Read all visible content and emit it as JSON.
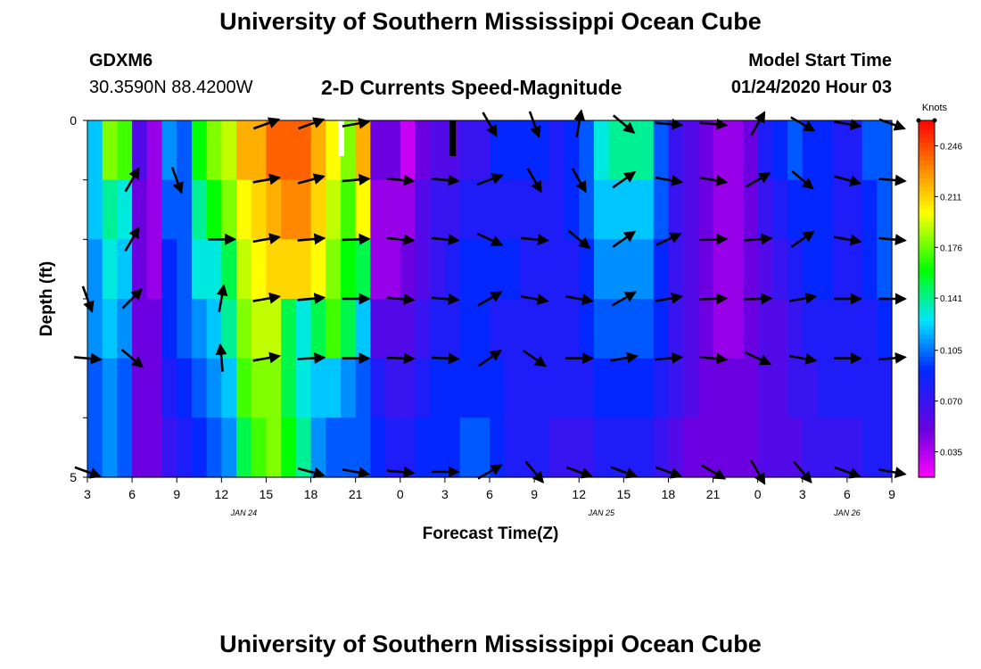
{
  "header": {
    "title": "University of Southern Mississippi Ocean Cube",
    "station": "GDXM6",
    "coords": "30.3590N 88.4200W",
    "subtitle": "2-D Currents Speed-Magnitude",
    "model_label": "Model Start Time",
    "model_time": "01/24/2020 Hour 03"
  },
  "footer": {
    "title": "University of Southern Mississippi Ocean Cube"
  },
  "chart_data": {
    "type": "heatmap",
    "title": "2-D Currents Speed-Magnitude",
    "xlabel": "Forecast Time(Z)",
    "ylabel": "Depth (ft)",
    "x_tick_labels": [
      "3",
      "6",
      "9",
      "12",
      "15",
      "18",
      "21",
      "0",
      "3",
      "6",
      "9",
      "12",
      "15",
      "18",
      "21",
      "0",
      "3",
      "6",
      "9"
    ],
    "date_labels": [
      {
        "label": "JAN 24",
        "tick_index": 3.5
      },
      {
        "label": "JAN 25",
        "tick_index": 11.5
      },
      {
        "label": "JAN 26",
        "tick_index": 17.0
      }
    ],
    "xlim_hours": [
      0,
      54
    ],
    "y_tick_labels": [
      "0",
      "5"
    ],
    "ylim": [
      0,
      5
    ],
    "depth_layers": 6,
    "colorbar": {
      "label": "Knots",
      "min": 0.0175,
      "max": 0.2635,
      "ticks": [
        "0.246",
        "0.211",
        "0.176",
        "0.141",
        "0.105",
        "0.070",
        "0.035"
      ],
      "tick_values": [
        0.246,
        0.211,
        0.176,
        0.141,
        0.105,
        0.07,
        0.035
      ]
    },
    "markers": [
      {
        "hour": 17,
        "color": "#ffffff"
      },
      {
        "hour": 24.5,
        "color": "#000000"
      }
    ],
    "speed_rows": [
      [
        0.12,
        0.18,
        0.17,
        0.06,
        0.04,
        0.11,
        0.1,
        0.16,
        0.18,
        0.19,
        0.22,
        0.22,
        0.24,
        0.24,
        0.24,
        0.22,
        0.2,
        0.18,
        0.22,
        0.05,
        0.05,
        0.03,
        0.05,
        0.06,
        0.06,
        0.07,
        0.07,
        0.09,
        0.09,
        0.09,
        0.09,
        0.08,
        0.09,
        0.1,
        0.13,
        0.14,
        0.14,
        0.14,
        0.1,
        0.07,
        0.06,
        0.05,
        0.04,
        0.04,
        0.05,
        0.08,
        0.09,
        0.1,
        0.09,
        0.09,
        0.08,
        0.08,
        0.1,
        0.1
      ],
      [
        0.12,
        0.14,
        0.13,
        0.05,
        0.04,
        0.1,
        0.1,
        0.14,
        0.16,
        0.18,
        0.2,
        0.21,
        0.22,
        0.23,
        0.23,
        0.21,
        0.19,
        0.17,
        0.2,
        0.04,
        0.04,
        0.04,
        0.06,
        0.07,
        0.07,
        0.08,
        0.08,
        0.08,
        0.08,
        0.08,
        0.08,
        0.08,
        0.09,
        0.1,
        0.12,
        0.12,
        0.12,
        0.12,
        0.1,
        0.07,
        0.06,
        0.05,
        0.04,
        0.04,
        0.05,
        0.07,
        0.08,
        0.09,
        0.09,
        0.09,
        0.08,
        0.08,
        0.09,
        0.1
      ],
      [
        0.11,
        0.13,
        0.12,
        0.05,
        0.04,
        0.09,
        0.1,
        0.13,
        0.13,
        0.15,
        0.19,
        0.2,
        0.21,
        0.21,
        0.21,
        0.2,
        0.18,
        0.16,
        0.15,
        0.04,
        0.04,
        0.05,
        0.06,
        0.07,
        0.08,
        0.09,
        0.09,
        0.09,
        0.09,
        0.08,
        0.08,
        0.08,
        0.08,
        0.09,
        0.11,
        0.11,
        0.11,
        0.11,
        0.09,
        0.07,
        0.06,
        0.05,
        0.04,
        0.04,
        0.05,
        0.06,
        0.07,
        0.08,
        0.09,
        0.09,
        0.08,
        0.08,
        0.09,
        0.1
      ],
      [
        0.11,
        0.12,
        0.11,
        0.05,
        0.05,
        0.09,
        0.1,
        0.11,
        0.12,
        0.14,
        0.18,
        0.19,
        0.19,
        0.15,
        0.13,
        0.15,
        0.17,
        0.15,
        0.12,
        0.06,
        0.06,
        0.06,
        0.07,
        0.08,
        0.08,
        0.09,
        0.09,
        0.08,
        0.08,
        0.08,
        0.08,
        0.08,
        0.08,
        0.09,
        0.1,
        0.1,
        0.1,
        0.1,
        0.09,
        0.07,
        0.06,
        0.05,
        0.04,
        0.04,
        0.05,
        0.06,
        0.06,
        0.07,
        0.08,
        0.08,
        0.08,
        0.08,
        0.08,
        0.09
      ],
      [
        0.1,
        0.11,
        0.1,
        0.05,
        0.05,
        0.08,
        0.09,
        0.1,
        0.11,
        0.12,
        0.17,
        0.18,
        0.18,
        0.15,
        0.13,
        0.12,
        0.12,
        0.11,
        0.1,
        0.08,
        0.07,
        0.07,
        0.08,
        0.09,
        0.09,
        0.09,
        0.09,
        0.09,
        0.08,
        0.08,
        0.08,
        0.08,
        0.08,
        0.08,
        0.09,
        0.09,
        0.09,
        0.09,
        0.08,
        0.07,
        0.06,
        0.05,
        0.05,
        0.05,
        0.05,
        0.06,
        0.06,
        0.07,
        0.07,
        0.08,
        0.08,
        0.08,
        0.08,
        0.08
      ],
      [
        0.1,
        0.11,
        0.1,
        0.05,
        0.05,
        0.07,
        0.08,
        0.09,
        0.1,
        0.11,
        0.15,
        0.17,
        0.18,
        0.16,
        0.14,
        0.11,
        0.1,
        0.1,
        0.1,
        0.09,
        0.08,
        0.08,
        0.09,
        0.09,
        0.09,
        0.1,
        0.1,
        0.09,
        0.08,
        0.08,
        0.08,
        0.07,
        0.07,
        0.07,
        0.08,
        0.08,
        0.08,
        0.08,
        0.07,
        0.06,
        0.05,
        0.05,
        0.05,
        0.05,
        0.05,
        0.06,
        0.06,
        0.06,
        0.07,
        0.07,
        0.07,
        0.07,
        0.08,
        0.08
      ]
    ],
    "vector_hours": [
      0,
      3,
      6,
      9,
      12,
      15,
      18,
      21,
      24,
      27,
      30,
      33,
      36,
      39,
      42,
      45,
      48,
      51,
      54
    ],
    "vector_angles_deg": [
      [
        null,
        null,
        null,
        null,
        20,
        20,
        10,
        null,
        null,
        -60,
        -70,
        80,
        -40,
        -5,
        -5,
        60,
        -30,
        -10,
        -20
      ],
      [
        null,
        60,
        -70,
        null,
        10,
        15,
        5,
        -5,
        -5,
        20,
        -60,
        -60,
        35,
        -10,
        -10,
        30,
        -40,
        -15,
        -5
      ],
      [
        null,
        60,
        null,
        0,
        10,
        5,
        2,
        -5,
        -5,
        -25,
        -5,
        -40,
        35,
        25,
        2,
        5,
        35,
        -10,
        -5
      ],
      [
        -70,
        45,
        null,
        80,
        10,
        5,
        0,
        -5,
        -5,
        30,
        -10,
        -10,
        30,
        10,
        2,
        2,
        10,
        0,
        0
      ],
      [
        -5,
        -40,
        null,
        95,
        10,
        3,
        0,
        -2,
        -3,
        35,
        -35,
        0,
        10,
        5,
        -5,
        -25,
        -10,
        0,
        5
      ],
      [
        -20,
        null,
        null,
        null,
        null,
        -15,
        -10,
        -5,
        0,
        30,
        -50,
        -20,
        -20,
        -20,
        -30,
        -60,
        -50,
        -20,
        -10
      ]
    ]
  }
}
